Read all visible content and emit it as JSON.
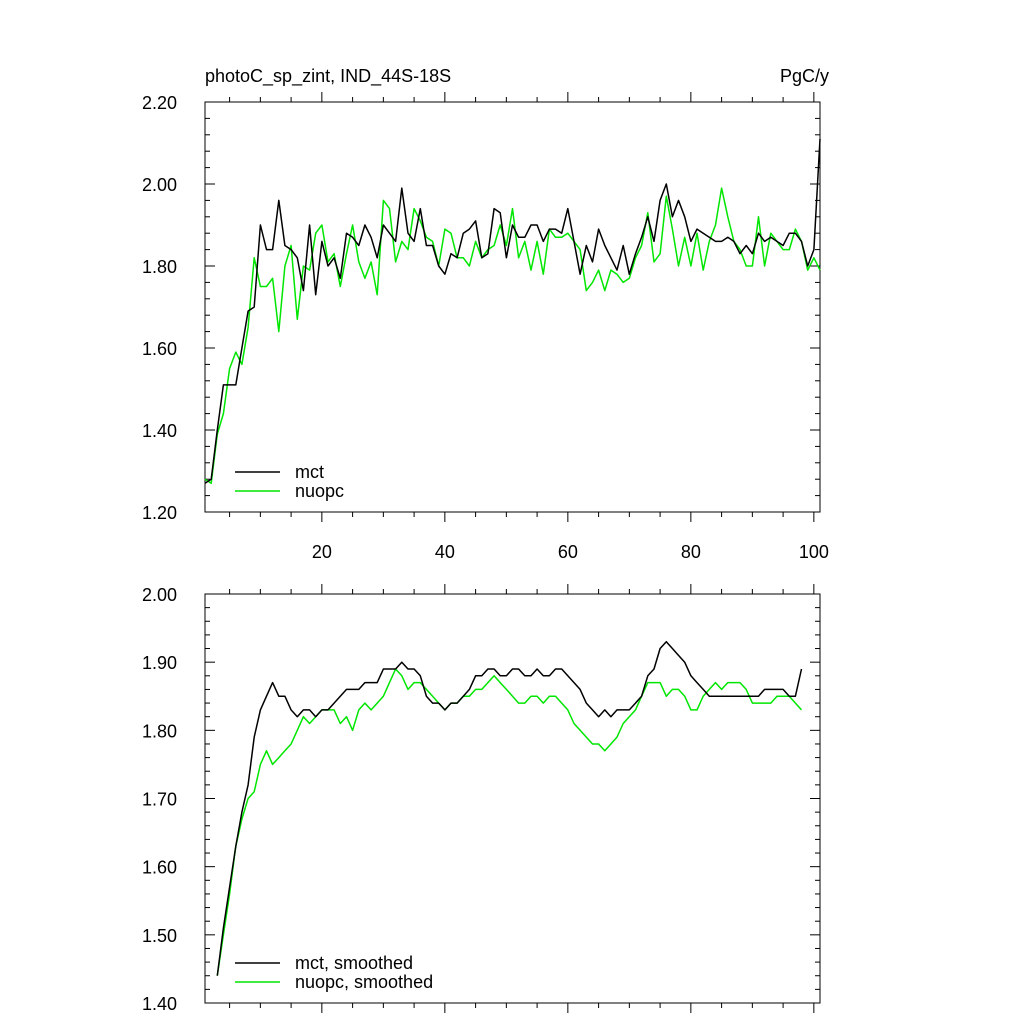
{
  "chart_data": [
    {
      "type": "line",
      "title": "photoC_sp_zint, IND_44S-18S",
      "units": "PgC/y",
      "xlim": [
        1,
        101
      ],
      "ylim": [
        1.2,
        2.2
      ],
      "yticks": [
        "1.20",
        "1.40",
        "1.60",
        "1.80",
        "2.00",
        "2.20"
      ],
      "xticks": [
        "20",
        "40",
        "60",
        "80",
        "100"
      ],
      "legend_position": "bottom-left",
      "series": [
        {
          "name": "mct",
          "color": "#000000",
          "x": [
            1,
            2,
            3,
            4,
            5,
            6,
            7,
            8,
            9,
            10,
            11,
            12,
            13,
            14,
            15,
            16,
            17,
            18,
            19,
            20,
            21,
            22,
            23,
            24,
            25,
            26,
            27,
            28,
            29,
            30,
            31,
            32,
            33,
            34,
            35,
            36,
            37,
            38,
            39,
            40,
            41,
            42,
            43,
            44,
            45,
            46,
            47,
            48,
            49,
            50,
            51,
            52,
            53,
            54,
            55,
            56,
            57,
            58,
            59,
            60,
            61,
            62,
            63,
            64,
            65,
            66,
            67,
            68,
            69,
            70,
            71,
            72,
            73,
            74,
            75,
            76,
            77,
            78,
            79,
            80,
            81,
            82,
            83,
            84,
            85,
            86,
            87,
            88,
            89,
            90,
            91,
            92,
            93,
            94,
            95,
            96,
            97,
            98,
            99,
            100,
            101
          ],
          "values": [
            1.27,
            1.28,
            1.4,
            1.51,
            1.51,
            1.51,
            1.6,
            1.69,
            1.7,
            1.9,
            1.84,
            1.84,
            1.96,
            1.85,
            1.84,
            1.82,
            1.74,
            1.9,
            1.73,
            1.86,
            1.8,
            1.82,
            1.77,
            1.88,
            1.87,
            1.85,
            1.9,
            1.87,
            1.82,
            1.9,
            1.88,
            1.86,
            1.99,
            1.88,
            1.86,
            1.94,
            1.85,
            1.85,
            1.8,
            1.78,
            1.83,
            1.82,
            1.88,
            1.89,
            1.91,
            1.82,
            1.83,
            1.94,
            1.93,
            1.82,
            1.9,
            1.87,
            1.87,
            1.9,
            1.9,
            1.86,
            1.89,
            1.89,
            1.88,
            1.94,
            1.86,
            1.78,
            1.85,
            1.81,
            1.89,
            1.85,
            1.82,
            1.79,
            1.85,
            1.78,
            1.83,
            1.87,
            1.92,
            1.86,
            1.96,
            2.0,
            1.92,
            1.96,
            1.92,
            1.86,
            1.89,
            1.88,
            1.87,
            1.86,
            1.86,
            1.87,
            1.86,
            1.83,
            1.85,
            1.83,
            1.88,
            1.86,
            1.87,
            1.86,
            1.85,
            1.88,
            1.88,
            1.86,
            1.8,
            1.84,
            2.11
          ]
        },
        {
          "name": "nuopc",
          "color": "#00e600",
          "x": [
            1,
            2,
            3,
            4,
            5,
            6,
            7,
            8,
            9,
            10,
            11,
            12,
            13,
            14,
            15,
            16,
            17,
            18,
            19,
            20,
            21,
            22,
            23,
            24,
            25,
            26,
            27,
            28,
            29,
            30,
            31,
            32,
            33,
            34,
            35,
            36,
            37,
            38,
            39,
            40,
            41,
            42,
            43,
            44,
            45,
            46,
            47,
            48,
            49,
            50,
            51,
            52,
            53,
            54,
            55,
            56,
            57,
            58,
            59,
            60,
            61,
            62,
            63,
            64,
            65,
            66,
            67,
            68,
            69,
            70,
            71,
            72,
            73,
            74,
            75,
            76,
            77,
            78,
            79,
            80,
            81,
            82,
            83,
            84,
            85,
            86,
            87,
            88,
            89,
            90,
            91,
            92,
            93,
            94,
            95,
            96,
            97,
            98,
            99,
            100,
            101
          ],
          "values": [
            1.28,
            1.27,
            1.39,
            1.44,
            1.55,
            1.59,
            1.56,
            1.65,
            1.82,
            1.75,
            1.75,
            1.77,
            1.64,
            1.8,
            1.85,
            1.67,
            1.8,
            1.79,
            1.88,
            1.9,
            1.81,
            1.83,
            1.75,
            1.83,
            1.9,
            1.81,
            1.77,
            1.81,
            1.73,
            1.96,
            1.94,
            1.81,
            1.86,
            1.84,
            1.94,
            1.91,
            1.87,
            1.86,
            1.8,
            1.89,
            1.88,
            1.82,
            1.82,
            1.8,
            1.86,
            1.82,
            1.84,
            1.85,
            1.9,
            1.85,
            1.94,
            1.82,
            1.86,
            1.79,
            1.86,
            1.78,
            1.89,
            1.87,
            1.87,
            1.88,
            1.86,
            1.84,
            1.74,
            1.76,
            1.79,
            1.74,
            1.79,
            1.78,
            1.76,
            1.77,
            1.82,
            1.85,
            1.93,
            1.81,
            1.83,
            1.97,
            1.89,
            1.8,
            1.87,
            1.8,
            1.88,
            1.79,
            1.86,
            1.9,
            1.99,
            1.92,
            1.86,
            1.84,
            1.8,
            1.8,
            1.92,
            1.8,
            1.88,
            1.86,
            1.84,
            1.84,
            1.89,
            1.86,
            1.79,
            1.82,
            1.79
          ]
        }
      ]
    },
    {
      "type": "line",
      "xlim": [
        1,
        101
      ],
      "ylim": [
        1.4,
        2.0
      ],
      "yticks": [
        "1.40",
        "1.50",
        "1.60",
        "1.70",
        "1.80",
        "1.90",
        "2.00"
      ],
      "legend_position": "bottom-left",
      "series": [
        {
          "name": "mct, smoothed",
          "color": "#000000",
          "x": [
            3,
            4,
            5,
            6,
            7,
            8,
            9,
            10,
            11,
            12,
            13,
            14,
            15,
            16,
            17,
            18,
            19,
            20,
            21,
            22,
            23,
            24,
            25,
            26,
            27,
            28,
            29,
            30,
            31,
            32,
            33,
            34,
            35,
            36,
            37,
            38,
            39,
            40,
            41,
            42,
            43,
            44,
            45,
            46,
            47,
            48,
            49,
            50,
            51,
            52,
            53,
            54,
            55,
            56,
            57,
            58,
            59,
            60,
            61,
            62,
            63,
            64,
            65,
            66,
            67,
            68,
            69,
            70,
            71,
            72,
            73,
            74,
            75,
            76,
            77,
            78,
            79,
            80,
            81,
            82,
            83,
            84,
            85,
            86,
            87,
            88,
            89,
            90,
            91,
            92,
            93,
            94,
            95,
            96,
            97,
            98
          ],
          "values": [
            1.44,
            1.51,
            1.57,
            1.63,
            1.68,
            1.72,
            1.79,
            1.83,
            1.85,
            1.87,
            1.85,
            1.85,
            1.83,
            1.82,
            1.83,
            1.83,
            1.82,
            1.83,
            1.83,
            1.84,
            1.85,
            1.86,
            1.86,
            1.86,
            1.87,
            1.87,
            1.87,
            1.89,
            1.89,
            1.89,
            1.9,
            1.89,
            1.89,
            1.88,
            1.85,
            1.84,
            1.84,
            1.83,
            1.84,
            1.84,
            1.85,
            1.86,
            1.88,
            1.88,
            1.89,
            1.89,
            1.88,
            1.88,
            1.89,
            1.89,
            1.88,
            1.88,
            1.89,
            1.88,
            1.88,
            1.89,
            1.89,
            1.88,
            1.87,
            1.86,
            1.84,
            1.83,
            1.82,
            1.83,
            1.82,
            1.83,
            1.83,
            1.83,
            1.84,
            1.85,
            1.88,
            1.89,
            1.92,
            1.93,
            1.92,
            1.91,
            1.9,
            1.88,
            1.87,
            1.86,
            1.85,
            1.85,
            1.85,
            1.85,
            1.85,
            1.85,
            1.85,
            1.85,
            1.85,
            1.86,
            1.86,
            1.86,
            1.86,
            1.85,
            1.85,
            1.89
          ]
        },
        {
          "name": "nuopc, smoothed",
          "color": "#00e600",
          "x": [
            3,
            4,
            5,
            6,
            7,
            8,
            9,
            10,
            11,
            12,
            13,
            14,
            15,
            16,
            17,
            18,
            19,
            20,
            21,
            22,
            23,
            24,
            25,
            26,
            27,
            28,
            29,
            30,
            31,
            32,
            33,
            34,
            35,
            36,
            37,
            38,
            39,
            40,
            41,
            42,
            43,
            44,
            45,
            46,
            47,
            48,
            49,
            50,
            51,
            52,
            53,
            54,
            55,
            56,
            57,
            58,
            59,
            60,
            61,
            62,
            63,
            64,
            65,
            66,
            67,
            68,
            69,
            70,
            71,
            72,
            73,
            74,
            75,
            76,
            77,
            78,
            79,
            80,
            81,
            82,
            83,
            84,
            85,
            86,
            87,
            88,
            89,
            90,
            91,
            92,
            93,
            94,
            95,
            96,
            97,
            98
          ],
          "values": [
            1.44,
            1.5,
            1.56,
            1.63,
            1.67,
            1.7,
            1.71,
            1.75,
            1.77,
            1.75,
            1.76,
            1.77,
            1.78,
            1.8,
            1.82,
            1.81,
            1.82,
            1.83,
            1.83,
            1.83,
            1.81,
            1.82,
            1.8,
            1.83,
            1.84,
            1.83,
            1.84,
            1.85,
            1.87,
            1.89,
            1.88,
            1.86,
            1.87,
            1.87,
            1.86,
            1.85,
            1.84,
            1.83,
            1.84,
            1.84,
            1.85,
            1.85,
            1.86,
            1.86,
            1.87,
            1.88,
            1.87,
            1.86,
            1.85,
            1.84,
            1.84,
            1.85,
            1.85,
            1.84,
            1.85,
            1.85,
            1.84,
            1.83,
            1.81,
            1.8,
            1.79,
            1.78,
            1.78,
            1.77,
            1.78,
            1.79,
            1.81,
            1.82,
            1.83,
            1.85,
            1.87,
            1.87,
            1.87,
            1.85,
            1.86,
            1.86,
            1.85,
            1.83,
            1.83,
            1.85,
            1.86,
            1.87,
            1.86,
            1.87,
            1.87,
            1.87,
            1.86,
            1.84,
            1.84,
            1.84,
            1.84,
            1.85,
            1.85,
            1.85,
            1.84,
            1.83
          ]
        }
      ]
    }
  ]
}
